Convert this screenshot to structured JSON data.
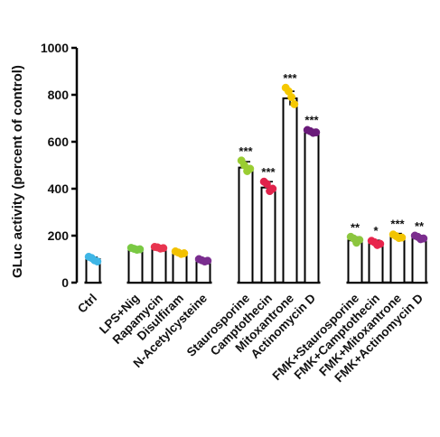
{
  "chart_data": {
    "type": "bar",
    "ylabel": "GLuc activity (percent of control)",
    "ylim": [
      0,
      1000
    ],
    "yticks": [
      0,
      200,
      400,
      600,
      800,
      1000
    ],
    "groups": [
      [
        "Ctrl"
      ],
      [
        "LPS+Nig",
        "Rapamycin",
        "Disulfiram",
        "N-Acetylcysteine"
      ],
      [
        "Staurosporine",
        "Camptothecin",
        "Mitoxantrone",
        "Actinomycin D"
      ],
      [
        "FMK+Staurosporine",
        "FMK+Camptothecin",
        "FMK+Mitoxantrone",
        "FMK+Actinomycin D"
      ]
    ],
    "categories": [
      "Ctrl",
      "LPS+Nig",
      "Rapamycin",
      "Disulfiram",
      "N-Acetylcysteine",
      "Staurosporine",
      "Camptothecin",
      "Mitoxantrone",
      "Actinomycin D",
      "FMK+Staurosporine",
      "FMK+Camptothecin",
      "FMK+Mitoxantrone",
      "FMK+Actinomycin D"
    ],
    "values": [
      100,
      143,
      148,
      127,
      95,
      490,
      405,
      785,
      642,
      180,
      168,
      195,
      190
    ],
    "errors": [
      8,
      6,
      5,
      8,
      8,
      25,
      25,
      30,
      10,
      14,
      12,
      14,
      10
    ],
    "points": [
      [
        110,
        105,
        95,
        90
      ],
      [
        148,
        144,
        140,
        142
      ],
      [
        152,
        150,
        145,
        147
      ],
      [
        133,
        128,
        122,
        125
      ],
      [
        100,
        95,
        90,
        93
      ],
      [
        520,
        500,
        475,
        485
      ],
      [
        430,
        420,
        390,
        400
      ],
      [
        830,
        815,
        790,
        760
      ],
      [
        650,
        645,
        638,
        640
      ],
      [
        195,
        188,
        170,
        182
      ],
      [
        178,
        172,
        160,
        165
      ],
      [
        205,
        198,
        190,
        192
      ],
      [
        200,
        195,
        185,
        188
      ]
    ],
    "significance": [
      "",
      "",
      "",
      "",
      "",
      "***",
      "***",
      "***",
      "***",
      "**",
      "*",
      "***",
      "**"
    ],
    "colors": [
      "#3fb6e6",
      "#7ac943",
      "#e8344f",
      "#f2c100",
      "#7a2d8f",
      "#9acd32",
      "#e0224a",
      "#f5c800",
      "#6a1b7a",
      "#8cc63f",
      "#e8244c",
      "#f2c400",
      "#7b2d8e"
    ]
  }
}
